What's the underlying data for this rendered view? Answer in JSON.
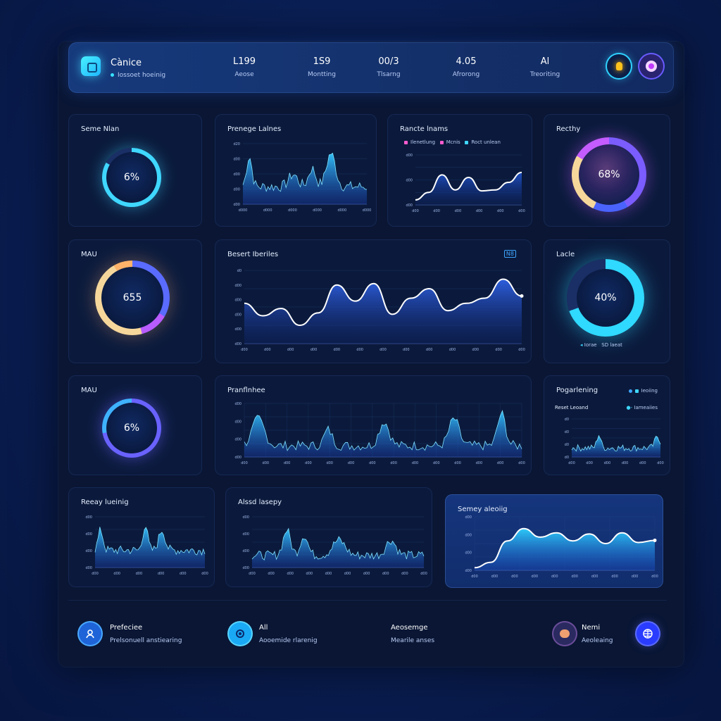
{
  "header": {
    "app_title": "Cànice",
    "app_subtitle": "Iossoet hoeinig",
    "stats": [
      {
        "value": "L199",
        "label": "Aeose"
      },
      {
        "value": "1S9",
        "label": "Montting"
      },
      {
        "value": "00/3",
        "label": "Tlsarng"
      },
      {
        "value": "4.05",
        "label": "Afrorong"
      },
      {
        "value": "Al",
        "label": "Treoriting"
      }
    ],
    "buttons": [
      "lightbulb-icon",
      "settings-ring-icon"
    ],
    "colors": {
      "accent": "#2fd2ff",
      "brand": "#1fb6ff"
    }
  },
  "cards": {
    "c1": {
      "title": "Seme Nlan",
      "value": "6%"
    },
    "c2": {
      "title": "Prenege Lalnes",
      "yticks": [
        "d20",
        "d00",
        "d00",
        "d00",
        "d00"
      ],
      "xticks": [
        "d000",
        "d000",
        "d000",
        "d000",
        "d000",
        "d000"
      ]
    },
    "c3": {
      "title": "Rancte lnams",
      "legend": [
        "Ilenetlung",
        "Mcnis",
        "Roct unlean"
      ],
      "yticks": [
        "d00",
        "d00",
        "d00"
      ],
      "xticks": [
        "d00",
        "d00",
        "d00",
        "d00",
        "d00",
        "d00"
      ]
    },
    "c4": {
      "title": "Recthy",
      "value": "68%"
    },
    "c5": {
      "title": "MAU",
      "value": "655"
    },
    "c6": {
      "title": "Besert Iberiles",
      "tag": "N8",
      "yticks": [
        "d0",
        "d00",
        "d00",
        "d00",
        "d00",
        "d00"
      ],
      "xticks": [
        "d00",
        "d00",
        "d00",
        "d00",
        "d00",
        "d00",
        "d00",
        "d00",
        "d00",
        "d00",
        "d00",
        "d00",
        "d00"
      ]
    },
    "c7": {
      "title": "Lacle",
      "value": "40%",
      "legend": [
        "Iorae",
        "SD laeat"
      ]
    },
    "c8": {
      "title": "MAU",
      "value": "6%"
    },
    "c9": {
      "title": "Pranflnhee",
      "yticks": [
        "d00",
        "d00",
        "d00",
        "d00"
      ],
      "xticks": [
        "d00",
        "d00",
        "d00",
        "d00",
        "d00",
        "d00",
        "d00",
        "d00",
        "d00",
        "d00",
        "d00",
        "d00",
        "d00",
        "d00"
      ]
    },
    "c10": {
      "title": "Pogarlening",
      "legend": [
        "Ieoiing"
      ],
      "subtitle": "Reset Leoand",
      "sublegend": "Iameaiies",
      "yticks": [
        "d0",
        "d0",
        "d0",
        "d0"
      ],
      "xticks": [
        "d00",
        "d00",
        "d00",
        "d00",
        "d00",
        "d00"
      ]
    },
    "c11": {
      "title": "Reeay lueinig",
      "yticks": [
        "d00",
        "d00",
        "d00",
        "d00"
      ],
      "xticks": [
        "d00",
        "d00",
        "d00",
        "d00",
        "d00",
        "d00"
      ]
    },
    "c12": {
      "title": "Alssd lasepy",
      "yticks": [
        "d00",
        "d00",
        "d00",
        "d00"
      ],
      "xticks": [
        "d00",
        "d00",
        "d00",
        "d00",
        "d00",
        "d00",
        "d00",
        "d00",
        "d00",
        "d00"
      ]
    },
    "c13": {
      "title": "Semey aleoiig",
      "yticks": [
        "d00",
        "d00",
        "d00",
        "d00"
      ],
      "xticks": [
        "d00",
        "d00",
        "d00",
        "d00",
        "d00",
        "d00",
        "d00",
        "d00",
        "d00",
        "d00"
      ]
    }
  },
  "footer": [
    {
      "icon": "person-icon",
      "title": "Prefeciee",
      "subtitle": "Prelsonuell anstiearing"
    },
    {
      "icon": "target-icon",
      "title": "All",
      "subtitle": "Aooemide rlarenig"
    },
    {
      "icon": "",
      "title": "Aeosemge",
      "subtitle": "Mearile anses"
    },
    {
      "icon": "avatar-icon",
      "title": "Nemi",
      "subtitle": "Aeoleaing"
    },
    {
      "icon": "globe-icon",
      "title": "",
      "subtitle": ""
    }
  ]
}
